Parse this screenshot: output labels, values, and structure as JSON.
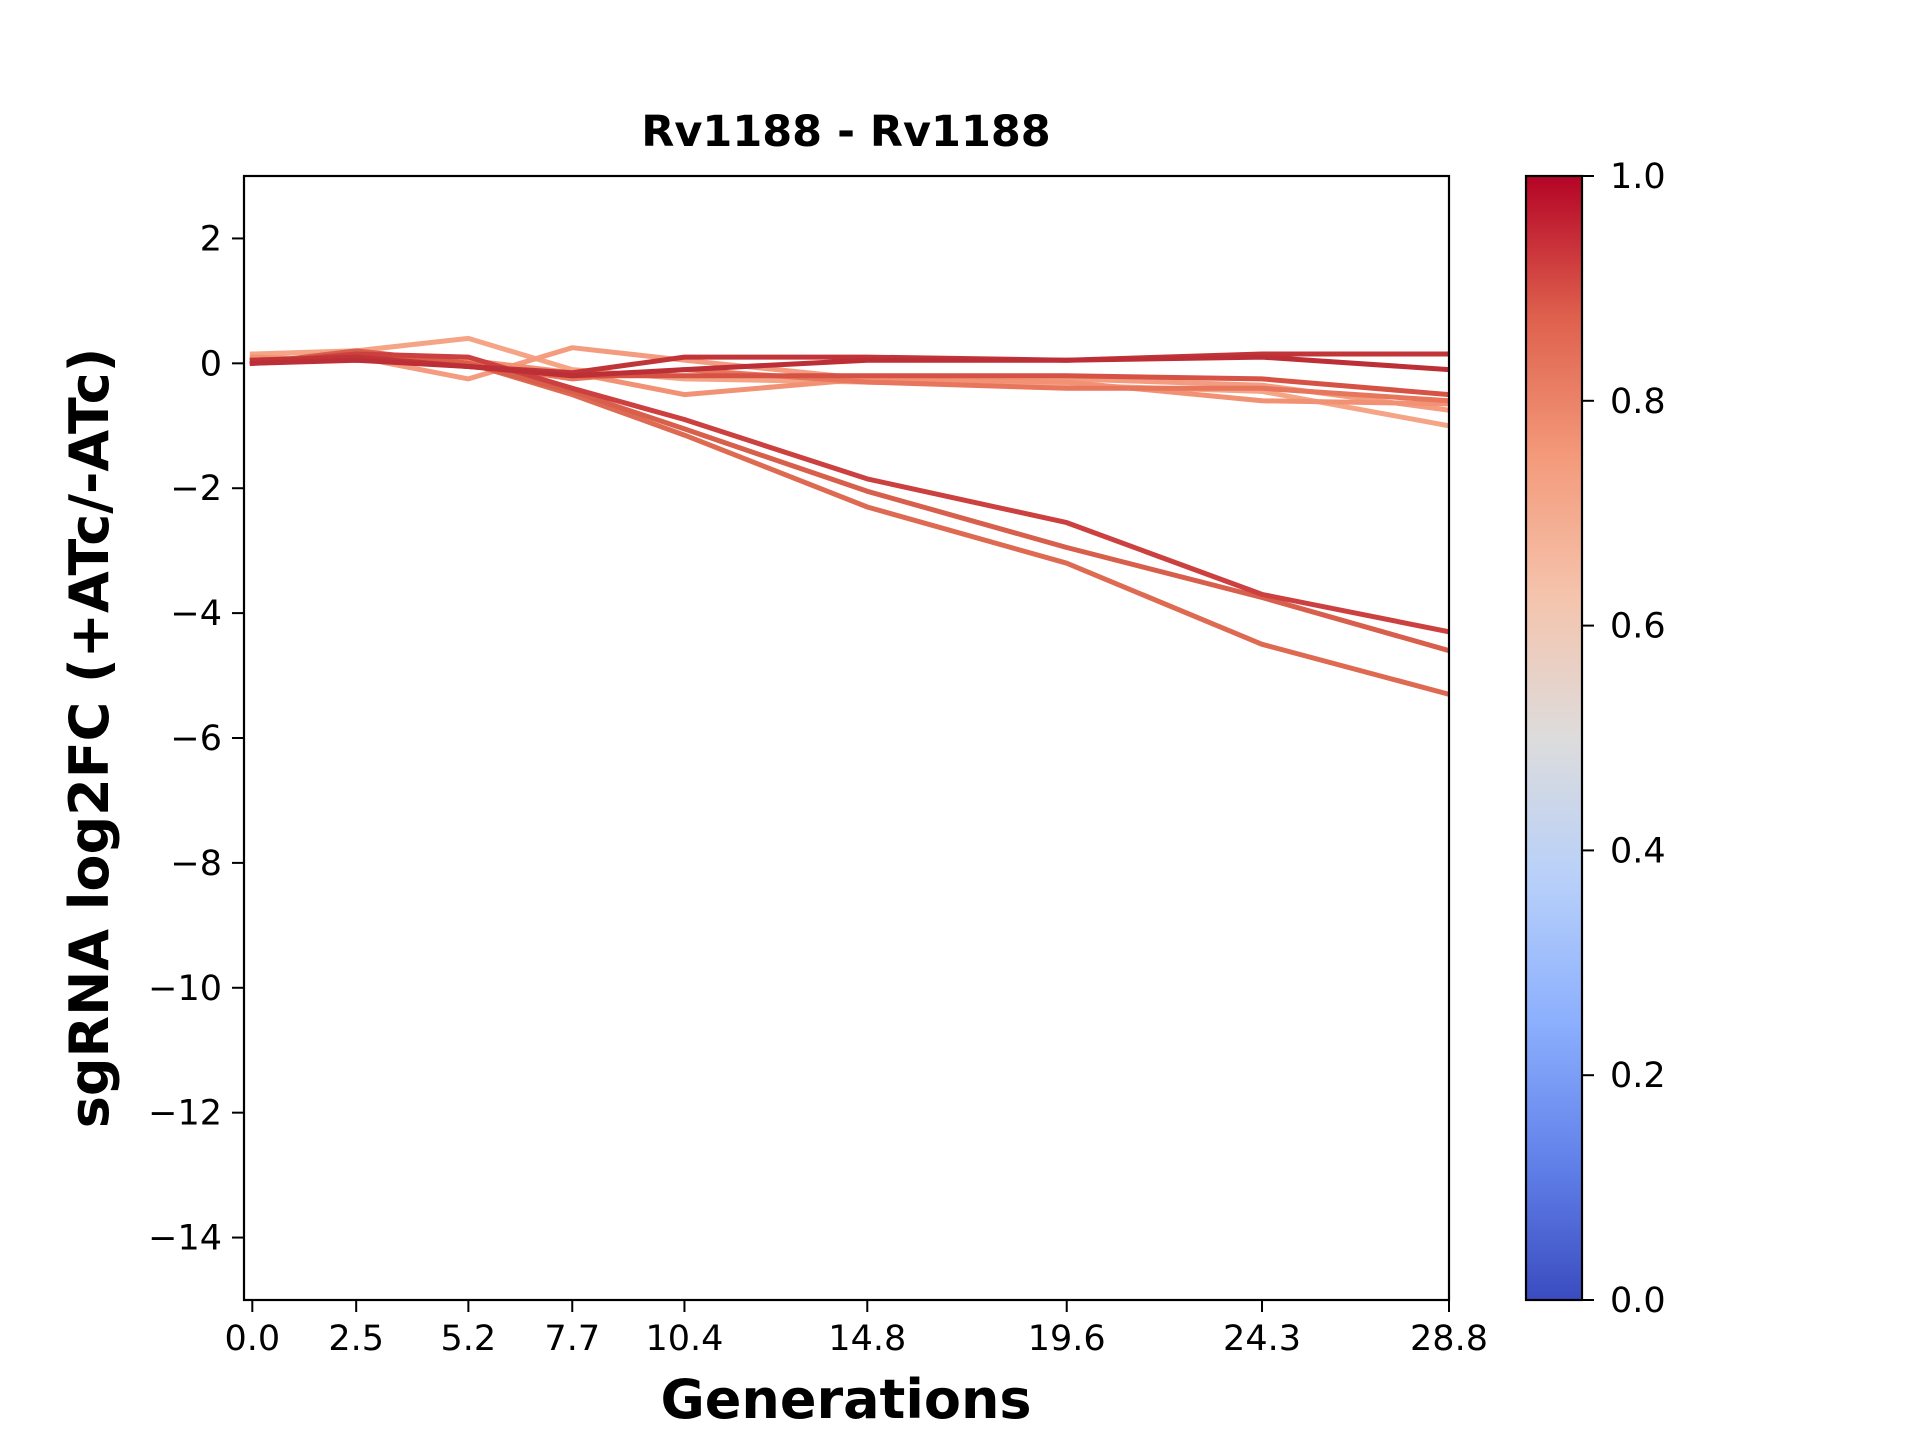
{
  "chart_data": {
    "type": "line",
    "title": "Rv1188 - Rv1188",
    "xlabel": "Generations",
    "ylabel": "sgRNA log2FC (+ATc/-ATc)",
    "x": [
      0.0,
      2.5,
      5.2,
      7.7,
      10.4,
      14.8,
      19.6,
      24.3,
      28.8
    ],
    "x_tick_labels": [
      "0.0",
      "2.5",
      "5.2",
      "7.7",
      "10.4",
      "14.8",
      "19.6",
      "24.3",
      "28.8"
    ],
    "xlim": [
      -0.2,
      28.8
    ],
    "ylim": [
      -15,
      3
    ],
    "y_ticks": [
      2,
      0,
      -2,
      -4,
      -6,
      -8,
      -10,
      -12,
      -14
    ],
    "y_tick_labels": [
      "2",
      "0",
      "−2",
      "−4",
      "−6",
      "−8",
      "−10",
      "−12",
      "−14"
    ],
    "grid": false,
    "series": [
      {
        "color_value": 0.72,
        "color": "#f5a486",
        "values": [
          0.15,
          0.2,
          0.4,
          -0.1,
          -0.25,
          -0.3,
          -0.35,
          -0.45,
          -1.0
        ]
      },
      {
        "color_value": 0.74,
        "color": "#f39c7f",
        "values": [
          0.0,
          0.1,
          -0.25,
          0.25,
          0.05,
          -0.25,
          -0.25,
          -0.35,
          -0.75
        ]
      },
      {
        "color_value": 0.76,
        "color": "#f29274",
        "values": [
          0.1,
          0.05,
          0.05,
          -0.15,
          -0.5,
          -0.25,
          -0.3,
          -0.6,
          -0.65
        ]
      },
      {
        "color_value": 0.82,
        "color": "#e8765c",
        "values": [
          0.0,
          0.1,
          0.0,
          -0.25,
          -0.1,
          -0.3,
          -0.4,
          -0.4,
          -0.6
        ]
      },
      {
        "color_value": 0.85,
        "color": "#de6a52",
        "values": [
          0.0,
          0.15,
          0.0,
          -0.5,
          -1.15,
          -2.3,
          -3.2,
          -4.5,
          -5.3
        ]
      },
      {
        "color_value": 0.88,
        "color": "#d85f4b",
        "values": [
          0.0,
          0.2,
          0.0,
          -0.45,
          -1.05,
          -2.05,
          -2.95,
          -3.75,
          -4.6
        ]
      },
      {
        "color_value": 0.9,
        "color": "#d65245",
        "values": [
          0.05,
          0.1,
          -0.05,
          -0.2,
          -0.2,
          -0.2,
          -0.2,
          -0.25,
          -0.5
        ]
      },
      {
        "color_value": 0.93,
        "color": "#cc4040",
        "values": [
          0.0,
          0.15,
          0.1,
          -0.4,
          -0.9,
          -1.85,
          -2.55,
          -3.7,
          -4.3
        ]
      },
      {
        "color_value": 0.96,
        "color": "#c13539",
        "values": [
          0.05,
          0.1,
          -0.05,
          -0.15,
          0.1,
          0.1,
          0.05,
          0.15,
          0.15
        ]
      },
      {
        "color_value": 0.98,
        "color": "#bd2f36",
        "values": [
          0.0,
          0.05,
          -0.05,
          -0.2,
          -0.1,
          0.05,
          0.05,
          0.1,
          -0.1
        ]
      }
    ],
    "colorbar": {
      "colormap": "coolwarm",
      "range": [
        0.0,
        1.0
      ],
      "ticks": [
        0.0,
        0.2,
        0.4,
        0.6,
        0.8,
        1.0
      ],
      "tick_labels": [
        "0.0",
        "0.2",
        "0.4",
        "0.6",
        "0.8",
        "1.0"
      ],
      "stops": [
        "#3b4cc0",
        "#6282ea",
        "#8db0fe",
        "#b8d0f9",
        "#dddcdc",
        "#f5c4ad",
        "#f49a7b",
        "#de604d",
        "#b40426"
      ]
    }
  }
}
